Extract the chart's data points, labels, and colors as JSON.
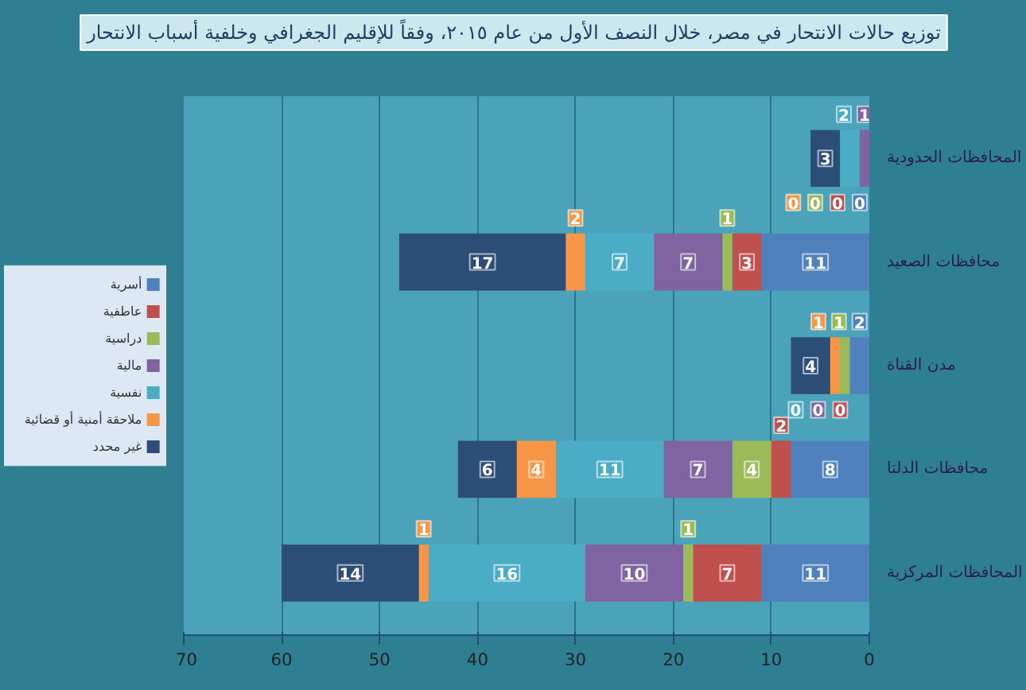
{
  "chart_data": {
    "type": "bar",
    "orientation": "horizontal",
    "stacked": true,
    "title": "توزيع حالات الانتحار في مصر، خلال النصف الأول من عام ٢٠١٥، وفقاً للإقليم الجغرافي وخلفية أسباب الانتحار",
    "categories": [
      "المحافظات الحدودية",
      "محافظات الصعيد",
      "مدن القناة",
      "محافظات الدلتا",
      "المحافظات المركزية"
    ],
    "series": [
      {
        "name": "أسرية",
        "color": "#4f81bd",
        "values": [
          0,
          11,
          2,
          8,
          11
        ]
      },
      {
        "name": "عاطفية",
        "color": "#c0504d",
        "values": [
          0,
          3,
          0,
          2,
          7
        ]
      },
      {
        "name": "دراسية",
        "color": "#9bbb59",
        "values": [
          0,
          1,
          1,
          4,
          1
        ]
      },
      {
        "name": "مالية",
        "color": "#8064a2",
        "values": [
          1,
          7,
          0,
          7,
          10
        ]
      },
      {
        "name": "نفسية",
        "color": "#4bacc6",
        "values": [
          2,
          7,
          0,
          11,
          16
        ]
      },
      {
        "name": "ملاحقة أمنية أو قضائية",
        "color": "#f79646",
        "values": [
          0,
          2,
          1,
          4,
          1
        ]
      },
      {
        "name": "غير محدد",
        "color": "#2c4d75",
        "values": [
          3,
          17,
          4,
          6,
          14
        ]
      }
    ],
    "xlim": [
      70,
      0
    ],
    "xticks": [
      70,
      60,
      50,
      40,
      30,
      20,
      10,
      0
    ],
    "grid": "x",
    "legend": "left",
    "data_labels": true
  }
}
